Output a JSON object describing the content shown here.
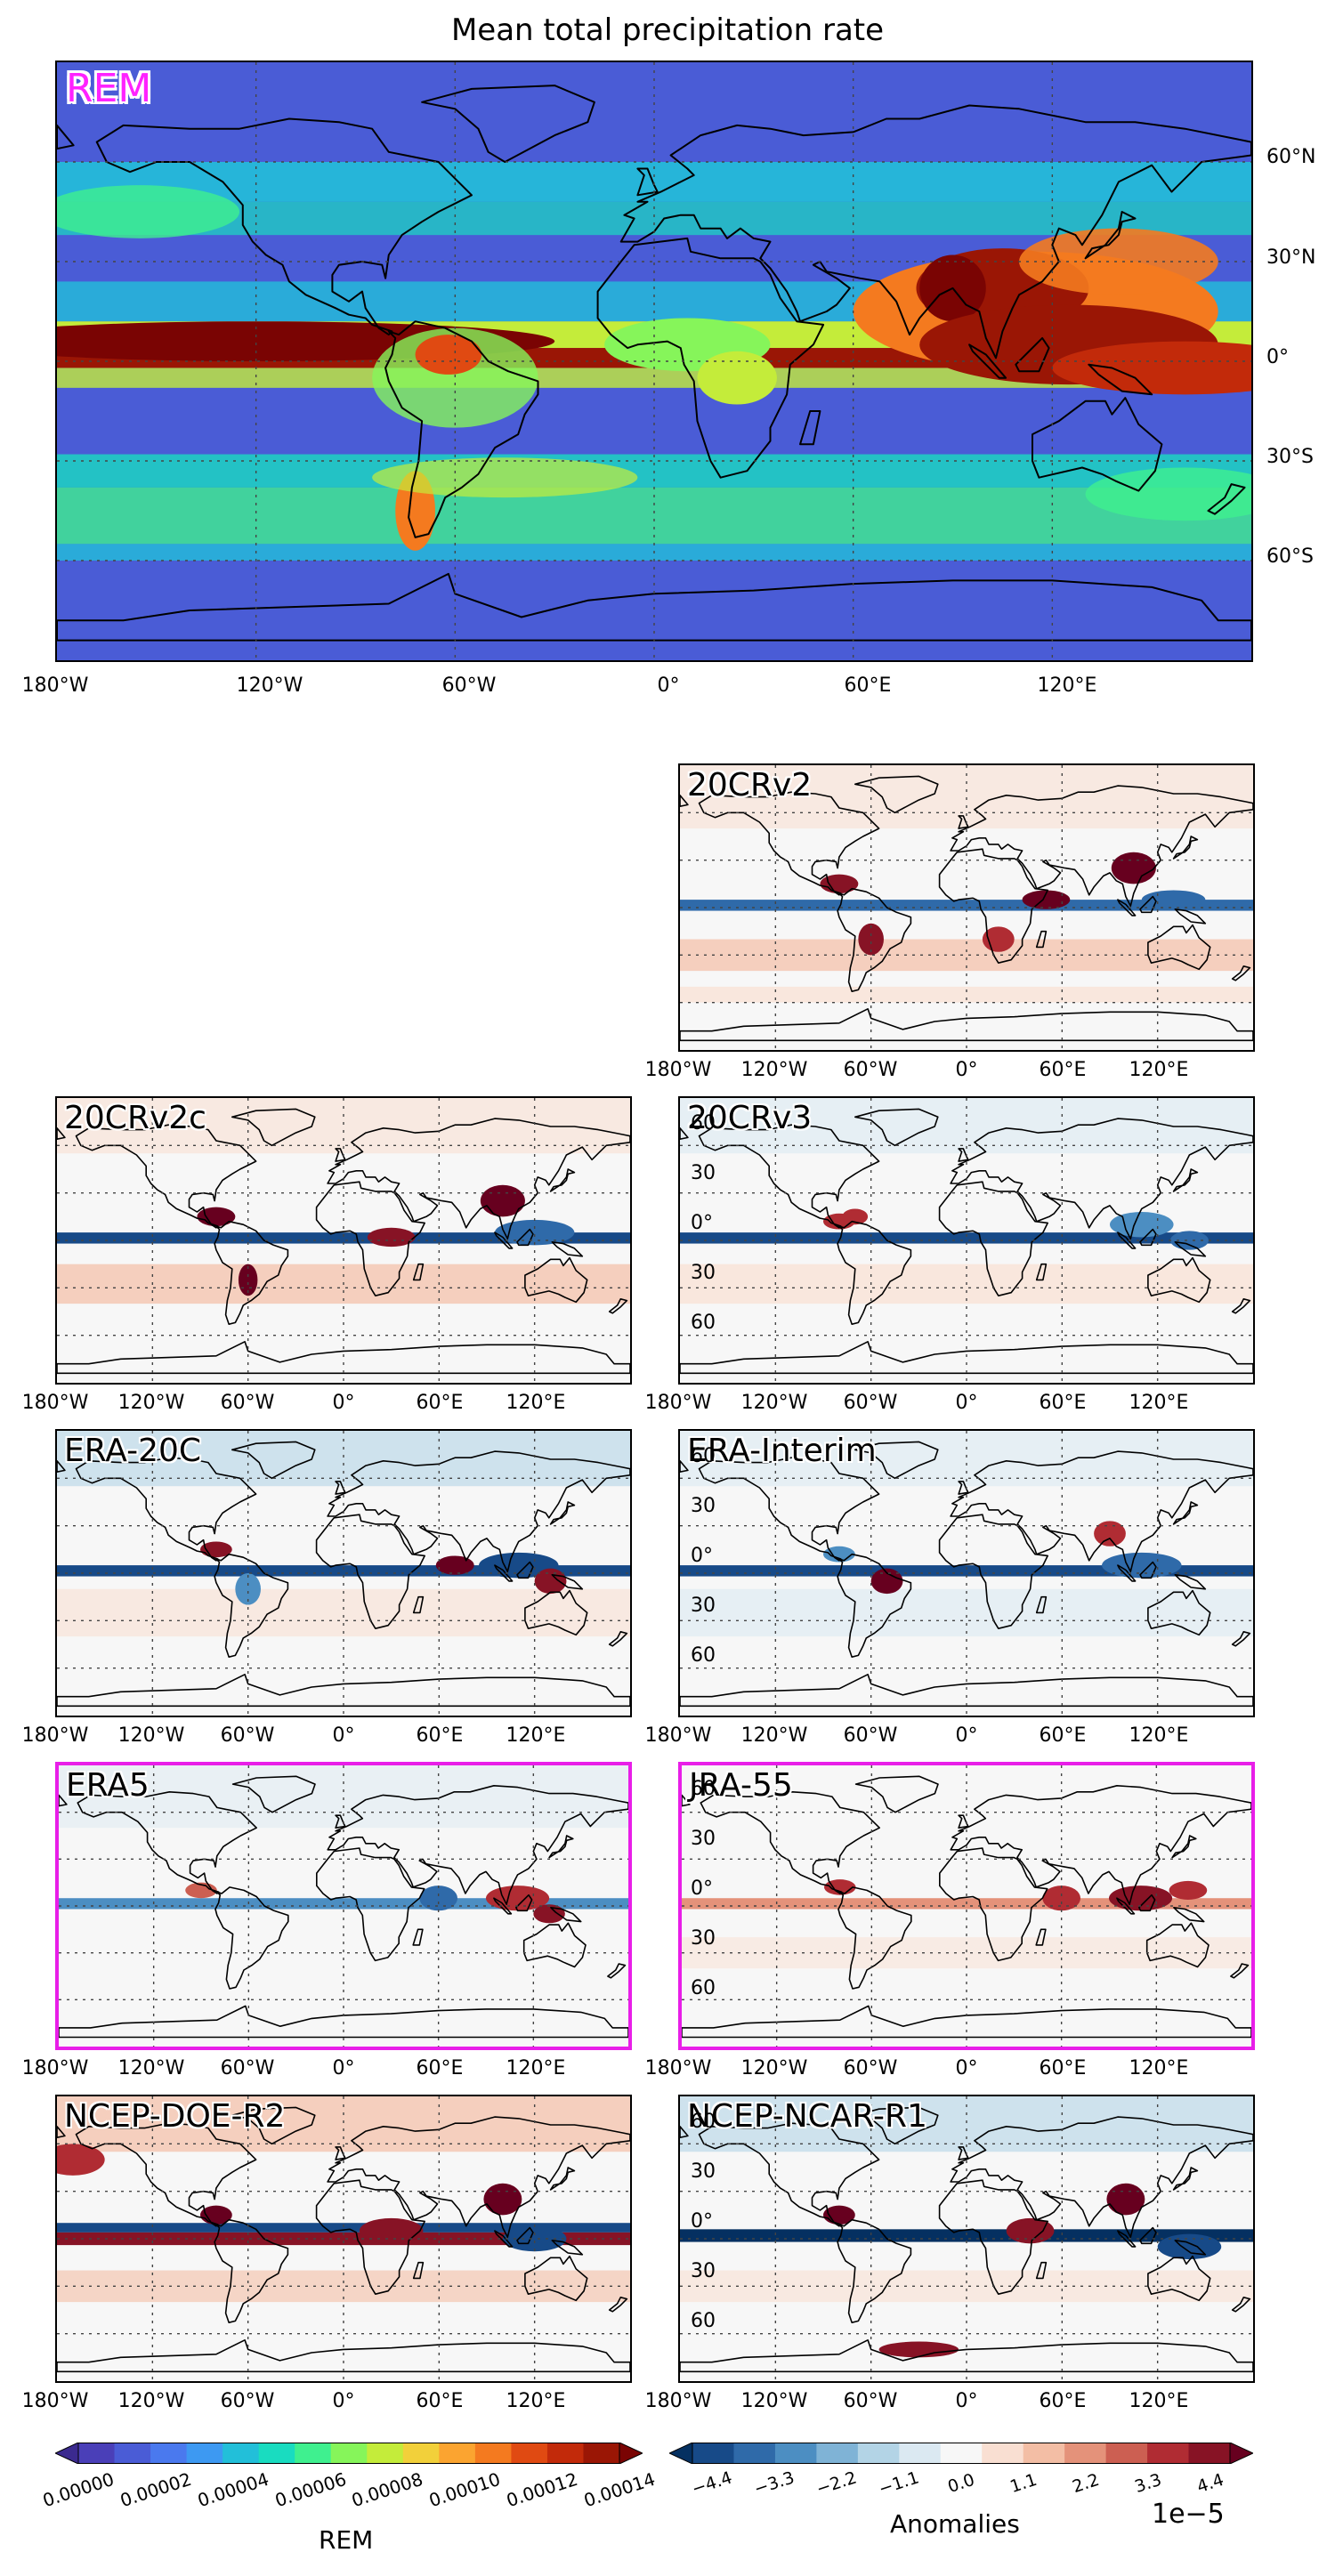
{
  "figure": {
    "title": "Mean total precipitation rate"
  },
  "main_panel": {
    "label": "REM",
    "lon_ticks": [
      "180°W",
      "120°W",
      "60°W",
      "0°",
      "60°E",
      "120°E"
    ],
    "lat_ticks": [
      "60°N",
      "30°N",
      "0°",
      "30°S",
      "60°S"
    ]
  },
  "anomaly_panels": [
    {
      "label": "20CRv2",
      "highlight": false
    },
    {
      "label": "20CRv2c",
      "highlight": false
    },
    {
      "label": "20CRv3",
      "highlight": false
    },
    {
      "label": "ERA-20C",
      "highlight": false
    },
    {
      "label": "ERA-Interim",
      "highlight": false
    },
    {
      "label": "ERA5",
      "highlight": true
    },
    {
      "label": "JRA-55",
      "highlight": true
    },
    {
      "label": "NCEP-DOE-R2",
      "highlight": false
    },
    {
      "label": "NCEP-NCAR-R1",
      "highlight": false
    }
  ],
  "small_lon_ticks": [
    "180°W",
    "120°W",
    "60°W",
    "0°",
    "60°E",
    "120°E"
  ],
  "small_lat_ticks": [
    "60",
    "30",
    "0°",
    "30",
    "60"
  ],
  "colorbar_rem": {
    "label": "REM",
    "ticks": [
      "0.00000",
      "0.00002",
      "0.00004",
      "0.00006",
      "0.00008",
      "0.00010",
      "0.00012",
      "0.00014"
    ],
    "colors": [
      "#3b2a8f",
      "#4a3fb8",
      "#4a5cd6",
      "#4a79ee",
      "#3d99f2",
      "#22bfd9",
      "#19dcc0",
      "#3ff08f",
      "#86f55a",
      "#c4ec3a",
      "#f2d03a",
      "#fba430",
      "#f47a1f",
      "#e04a12",
      "#c22a0a",
      "#9a1605",
      "#7a0403"
    ]
  },
  "colorbar_anom": {
    "label": "Anomalies",
    "ticks": [
      "−4.4",
      "−3.3",
      "−2.2",
      "−1.1",
      "0.0",
      "1.1",
      "2.2",
      "3.3",
      "4.4"
    ],
    "offset_text": "1e−5",
    "colors": [
      "#053061",
      "#174a88",
      "#2f6aa9",
      "#4c8ec2",
      "#7fb3d6",
      "#b3d4e6",
      "#dbe9f2",
      "#f7f7f7",
      "#f9dfd2",
      "#f3bea5",
      "#e4927a",
      "#cc5f52",
      "#b02c33",
      "#871325",
      "#67001f"
    ]
  },
  "colors": {
    "highlight": "#e81ee8",
    "ocean_base": "#4a5cd6"
  }
}
